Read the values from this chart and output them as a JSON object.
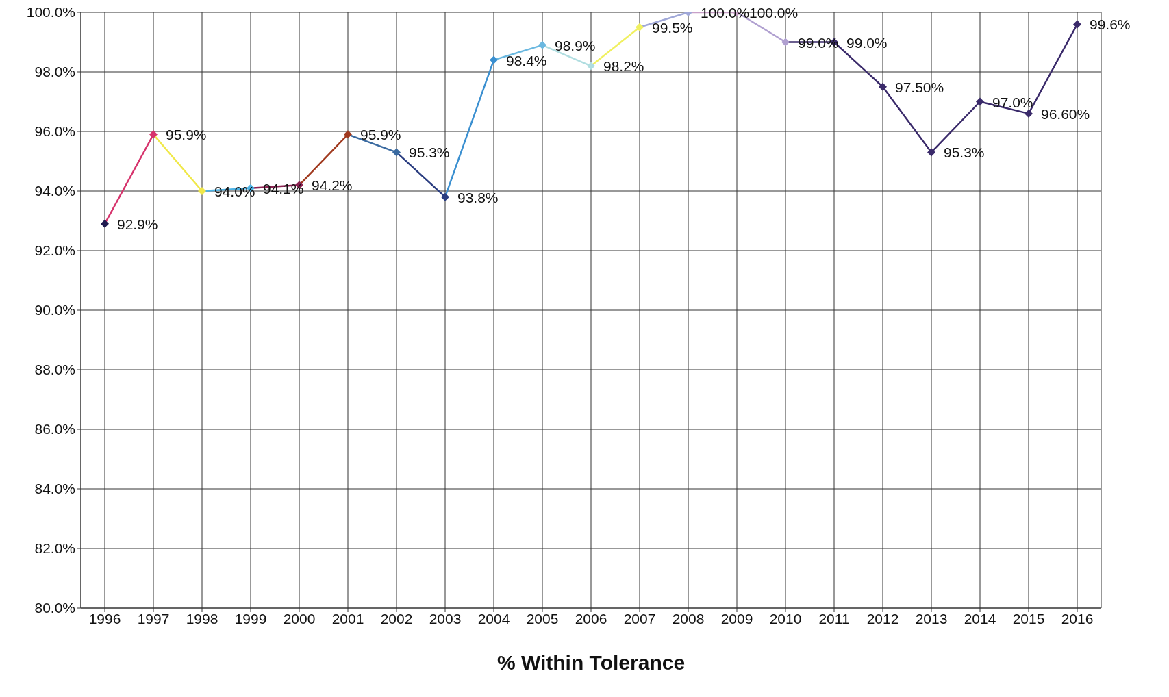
{
  "chart_data": {
    "type": "line",
    "xlabel": "% Within Tolerance",
    "categories": [
      "1996",
      "1997",
      "1998",
      "1999",
      "2000",
      "2001",
      "2002",
      "2003",
      "2004",
      "2005",
      "2006",
      "2007",
      "2008",
      "2009",
      "2010",
      "2011",
      "2012",
      "2013",
      "2014",
      "2015",
      "2016"
    ],
    "series": [
      {
        "colors": [
          "#1f1a4f",
          "#d6336c",
          "#f0e84a",
          "#4db3e6",
          "#8b2252",
          "#a0391e",
          "#3a6aa0",
          "#2a3d80",
          "#3a8fd0",
          "#6ab8e0",
          "#b0dde0",
          "#f0f060",
          "#a0a8d8",
          "#c8a0c8",
          "#b0a0d0",
          "#3a2a6a",
          "#3a2a6a",
          "#3a2a6a",
          "#3a2a6a",
          "#3a2a6a",
          "#3a2a6a"
        ],
        "values": [
          92.9,
          95.9,
          94.0,
          94.1,
          94.2,
          95.9,
          95.3,
          93.8,
          98.4,
          98.9,
          98.2,
          99.5,
          100.0,
          100.0,
          99.0,
          99.0,
          97.5,
          95.3,
          97.0,
          96.6,
          99.6
        ],
        "value_labels": [
          "92.9%",
          "95.9%",
          "94.0%",
          "94.1%",
          "94.2%",
          "95.9%",
          "95.3%",
          "93.8%",
          "98.4%",
          "98.9%",
          "98.2%",
          "99.5%",
          "100.0%",
          "100.0%",
          "99.0%",
          "99.0%",
          "97.50%",
          "95.3%",
          "97.0%",
          "96.60%",
          "99.6%"
        ]
      }
    ],
    "ylim": [
      80,
      100
    ],
    "yticks": [
      {
        "value": 80,
        "label": "80.0%"
      },
      {
        "value": 82,
        "label": "82.0%"
      },
      {
        "value": 84,
        "label": "84.0%"
      },
      {
        "value": 86,
        "label": "86.0%"
      },
      {
        "value": 88,
        "label": "88.0%"
      },
      {
        "value": 90,
        "label": "90.0%"
      },
      {
        "value": 92,
        "label": "92.0%"
      },
      {
        "value": 94,
        "label": "94.0%"
      },
      {
        "value": 96,
        "label": "96.0%"
      },
      {
        "value": 98,
        "label": "98.0%"
      },
      {
        "value": 100,
        "label": "100.0%"
      }
    ],
    "grid": true,
    "marker": "diamond",
    "line_style": "solid"
  }
}
